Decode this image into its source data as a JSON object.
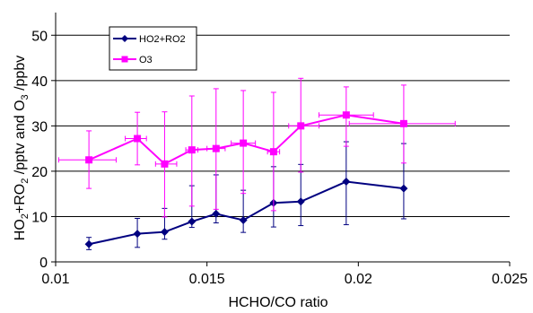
{
  "chart_data": {
    "type": "line",
    "xlabel": "HCHO/CO ratio",
    "ylabel_parts": {
      "p1": "HO",
      "p1_sub": "2",
      "p2": "+RO",
      "p2_sub": "2",
      "p3": " /pptv and O",
      "p3_sub": "3",
      "p4": " /ppbv"
    },
    "xlim": [
      0.01,
      0.025
    ],
    "ylim": [
      0,
      55
    ],
    "x_ticks": [
      0.01,
      0.015,
      0.02,
      0.025
    ],
    "x_tick_labels": [
      "0.01",
      "0.015",
      "0.02",
      "0.025"
    ],
    "y_ticks": [
      0,
      10,
      20,
      30,
      40,
      50
    ],
    "y_tick_labels": [
      "0",
      "10",
      "20",
      "30",
      "40",
      "50"
    ],
    "grid": "horizontal",
    "legend_position": "top-left",
    "series": [
      {
        "name": "HO2+RO2",
        "color": "#000080",
        "marker": "diamond",
        "x": [
          0.0111,
          0.0127,
          0.0136,
          0.0145,
          0.0153,
          0.0162,
          0.0172,
          0.0181,
          0.0196,
          0.0215
        ],
        "y": [
          3.9,
          6.2,
          6.6,
          8.9,
          10.6,
          9.2,
          13.0,
          13.3,
          17.7,
          16.2
        ],
        "y_err_low": [
          2.7,
          3.2,
          5.0,
          7.6,
          8.6,
          6.5,
          7.7,
          8.0,
          8.2,
          9.5
        ],
        "y_err_high": [
          5.4,
          9.6,
          11.8,
          16.8,
          19.2,
          15.8,
          21.0,
          21.5,
          26.5,
          26.1
        ]
      },
      {
        "name": "O3",
        "color": "#ff00ff",
        "marker": "square",
        "x": [
          0.0111,
          0.0127,
          0.0136,
          0.0145,
          0.0153,
          0.0162,
          0.0172,
          0.0181,
          0.0196,
          0.0215
        ],
        "y": [
          22.5,
          27.2,
          21.6,
          24.7,
          25.0,
          26.2,
          24.3,
          30.0,
          32.4,
          30.5
        ],
        "y_err_low": [
          16.2,
          21.4,
          9.9,
          12.3,
          11.6,
          15.1,
          11.3,
          19.8,
          25.5,
          21.8
        ],
        "y_err_high": [
          28.9,
          33.0,
          33.1,
          36.6,
          38.2,
          37.8,
          37.4,
          40.5,
          38.6,
          39.0
        ],
        "x_err_low": [
          0.0101,
          0.0123,
          0.0133,
          0.0143,
          0.015,
          0.0158,
          0.017,
          0.0177,
          0.0187,
          0.0197
        ],
        "x_err_high": [
          0.012,
          0.013,
          0.014,
          0.0147,
          0.0156,
          0.0166,
          0.0174,
          0.0187,
          0.0205,
          0.0232
        ]
      }
    ]
  }
}
